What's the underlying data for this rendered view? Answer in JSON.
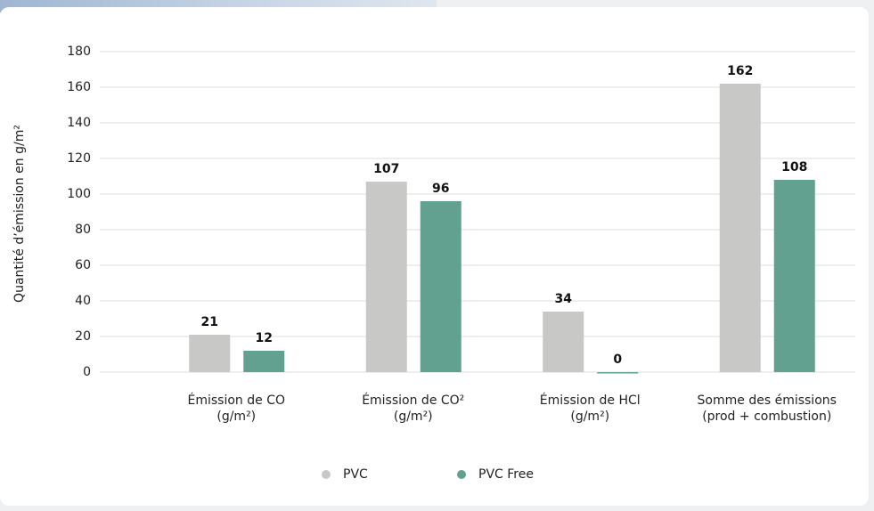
{
  "chart_data": {
    "type": "bar",
    "y_label": "Quantité d’émission en g/m²",
    "categories": [
      [
        "Émission de CO",
        "(g/m²)"
      ],
      [
        "Émission de CO²",
        "(g/m²)"
      ],
      [
        "Émission de HCl",
        "(g/m²)"
      ],
      [
        "Somme des émissions",
        "(prod + combustion)"
      ]
    ],
    "series": [
      {
        "name": "PVC",
        "color": "#c8c8c6",
        "values": [
          21,
          107,
          34,
          162
        ]
      },
      {
        "name": "PVC Free",
        "color": "#62a08f",
        "values": [
          12,
          96,
          0,
          108
        ]
      }
    ],
    "ylim": [
      0,
      180
    ],
    "yticks": [
      0,
      20,
      40,
      60,
      80,
      100,
      120,
      140,
      160,
      180
    ],
    "grid": true
  }
}
